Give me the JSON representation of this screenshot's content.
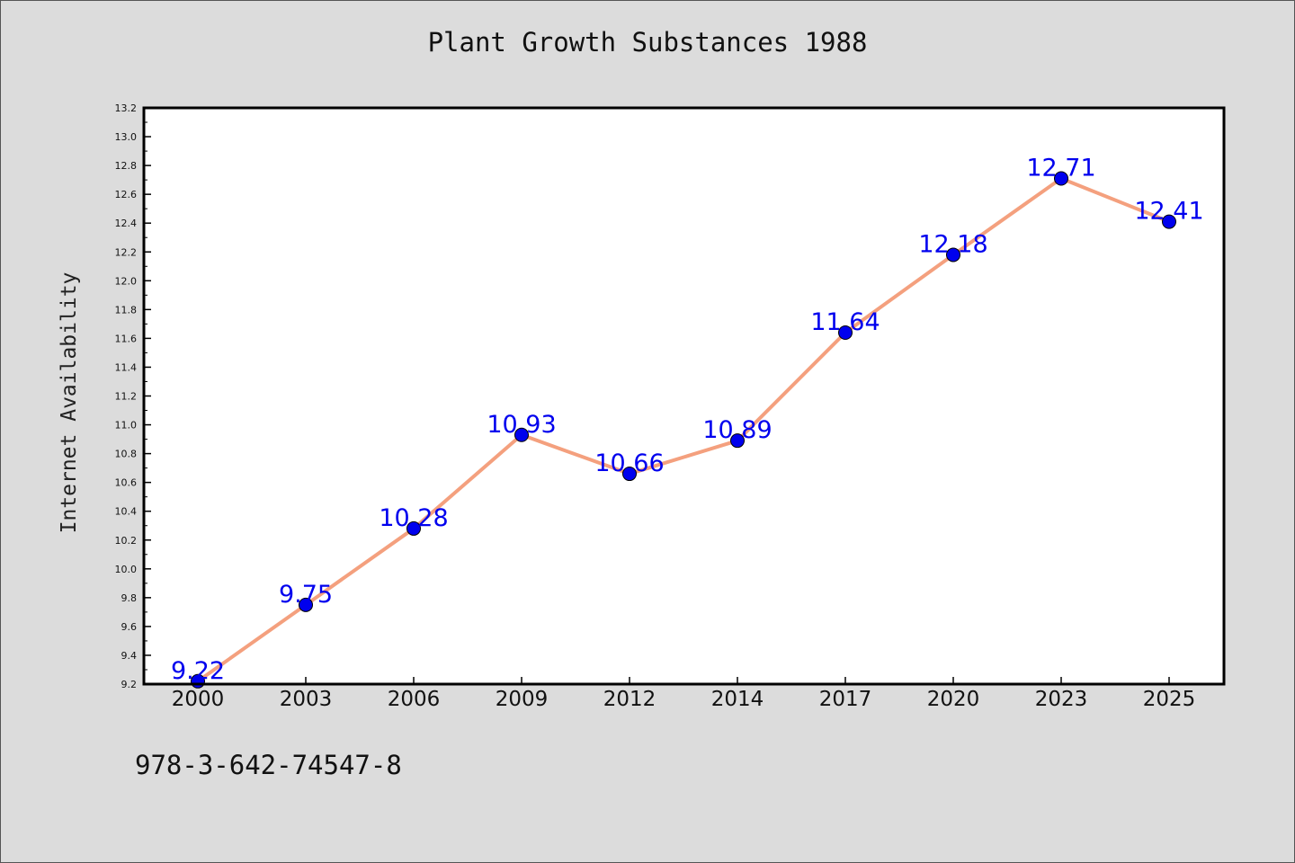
{
  "chart_data": {
    "type": "line",
    "title": "Plant Growth Substances 1988",
    "xlabel": "",
    "ylabel": "Internet Availability",
    "categories": [
      "2000",
      "2003",
      "2006",
      "2009",
      "2012",
      "2014",
      "2017",
      "2020",
      "2023",
      "2025"
    ],
    "series": [
      {
        "values": [
          9.22,
          9.75,
          10.28,
          10.93,
          10.66,
          10.89,
          11.64,
          12.18,
          12.71,
          12.41
        ],
        "labels": [
          "9.22",
          "9.75",
          "10.28",
          "10.93",
          "10.66",
          "10.89",
          "11.64",
          "12.18",
          "12.71",
          "12.41"
        ],
        "line_color": "#f4a07e",
        "marker_color": "#0000ee"
      }
    ],
    "ylim": [
      9.2,
      13.2
    ],
    "yticks": [
      "9.2",
      "9.4",
      "9.6",
      "9.8",
      "10.0",
      "10.2",
      "10.4",
      "10.6",
      "10.8",
      "11.0",
      "11.2",
      "11.4",
      "11.6",
      "11.8",
      "12.0",
      "12.2",
      "12.4",
      "12.6",
      "12.8",
      "13.0",
      "13.2"
    ],
    "grid": false,
    "data_label_color": "#0000ee"
  },
  "footnote": "978-3-642-74547-8"
}
